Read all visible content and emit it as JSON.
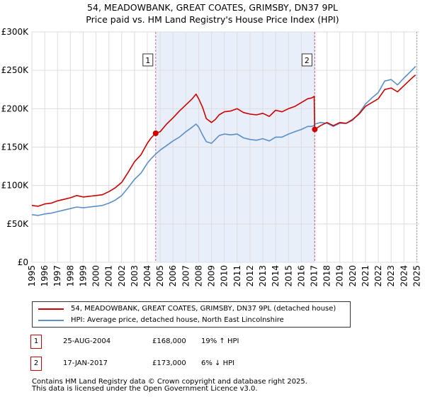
{
  "chart_data": {
    "type": "line",
    "title": "54, MEADOWBANK, GREAT COATES, GRIMSBY, DN37 9PL",
    "subtitle": "Price paid vs. HM Land Registry's House Price Index (HPI)",
    "xlim": [
      1995,
      2025.2
    ],
    "ylim": [
      0,
      300000
    ],
    "x_ticks": [
      1995,
      1996,
      1997,
      1998,
      1999,
      2000,
      2001,
      2002,
      2003,
      2004,
      2005,
      2006,
      2007,
      2008,
      2009,
      2010,
      2011,
      2012,
      2013,
      2014,
      2015,
      2016,
      2017,
      2018,
      2019,
      2020,
      2021,
      2022,
      2023,
      2024,
      2025
    ],
    "x_tick_labels": [
      "1995",
      "1996",
      "1997",
      "1998",
      "1999",
      "2000",
      "2001",
      "2002",
      "2003",
      "2004",
      "2005",
      "2006",
      "2007",
      "2008",
      "2009",
      "2010",
      "2011",
      "2012",
      "2013",
      "2014",
      "2015",
      "2016",
      "2017",
      "2018",
      "2019",
      "2020",
      "2021",
      "2022",
      "2023",
      "2024",
      "2025"
    ],
    "y_ticks": [
      0,
      50000,
      100000,
      150000,
      200000,
      250000,
      300000
    ],
    "y_tick_labels": [
      "£0",
      "£50K",
      "£100K",
      "£150K",
      "£200K",
      "£250K",
      "£300K"
    ],
    "shaded_span": [
      2004.65,
      2017.05
    ],
    "series": [
      {
        "name": "54, MEADOWBANK, GREAT COATES, GRIMSBY, DN37 9PL (detached house)",
        "color": "#cc0000",
        "x": [
          1995,
          1995.5,
          1996,
          1996.5,
          1997,
          1997.5,
          1998,
          1998.5,
          1999,
          1999.5,
          2000,
          2000.5,
          2001,
          2001.5,
          2002,
          2002.5,
          2003,
          2003.5,
          2004,
          2004.3,
          2004.65,
          2005,
          2005.5,
          2006,
          2006.5,
          2007,
          2007.5,
          2007.8,
          2008,
          2008.3,
          2008.6,
          2009,
          2009.3,
          2009.6,
          2010,
          2010.5,
          2011,
          2011.5,
          2012,
          2012.5,
          2013,
          2013.5,
          2014,
          2014.5,
          2015,
          2015.5,
          2016,
          2016.5,
          2016.8,
          2017.0,
          2017.05,
          2017.5,
          2018,
          2018.5,
          2019,
          2019.5,
          2020,
          2020.5,
          2021,
          2021.5,
          2022,
          2022.5,
          2023,
          2023.5,
          2024,
          2024.5,
          2024.9
        ],
        "y": [
          74000,
          73000,
          76000,
          77000,
          80000,
          82000,
          84000,
          87000,
          85000,
          86000,
          87000,
          88000,
          92000,
          97000,
          104000,
          117000,
          131000,
          140000,
          155000,
          162000,
          168000,
          170000,
          180000,
          188000,
          197000,
          205000,
          213000,
          219000,
          213000,
          202000,
          187000,
          182000,
          186000,
          192000,
          196000,
          197000,
          200000,
          195000,
          193000,
          192000,
          194000,
          190000,
          198000,
          196000,
          200000,
          203000,
          208000,
          213000,
          214000,
          216000,
          173000,
          178000,
          182000,
          178000,
          182000,
          181000,
          186000,
          193000,
          203000,
          208000,
          213000,
          225000,
          227000,
          222000,
          230000,
          238000,
          244000
        ]
      },
      {
        "name": "HPI: Average price, detached house, North East Lincolnshire",
        "color": "#5b8fc9",
        "x": [
          1995,
          1995.5,
          1996,
          1996.5,
          1997,
          1997.5,
          1998,
          1998.5,
          1999,
          1999.5,
          2000,
          2000.5,
          2001,
          2001.5,
          2002,
          2002.5,
          2003,
          2003.5,
          2004,
          2004.3,
          2004.65,
          2005,
          2005.5,
          2006,
          2006.5,
          2007,
          2007.5,
          2007.8,
          2008,
          2008.3,
          2008.6,
          2009,
          2009.3,
          2009.6,
          2010,
          2010.5,
          2011,
          2011.5,
          2012,
          2012.5,
          2013,
          2013.5,
          2014,
          2014.5,
          2015,
          2015.5,
          2016,
          2016.5,
          2016.8,
          2017.0,
          2017.05,
          2017.5,
          2018,
          2018.5,
          2019,
          2019.5,
          2020,
          2020.5,
          2021,
          2021.5,
          2022,
          2022.5,
          2023,
          2023.5,
          2024,
          2024.5,
          2024.9
        ],
        "y": [
          62000,
          61000,
          63000,
          64000,
          66000,
          68000,
          70000,
          72000,
          71000,
          72000,
          73000,
          74000,
          77000,
          81000,
          87000,
          97000,
          108000,
          116000,
          129000,
          135000,
          141000,
          146000,
          152000,
          158000,
          163000,
          170000,
          176000,
          180000,
          176000,
          166000,
          157000,
          155000,
          160000,
          165000,
          167000,
          166000,
          167000,
          162000,
          160000,
          159000,
          161000,
          158000,
          163000,
          163000,
          167000,
          170000,
          173000,
          177000,
          177000,
          178000,
          180000,
          182000,
          181000,
          177000,
          181000,
          181000,
          185000,
          194000,
          206000,
          214000,
          221000,
          236000,
          238000,
          231000,
          240000,
          248000,
          255000
        ]
      }
    ],
    "sales": [
      {
        "id": "1",
        "x": 2004.65,
        "price": 168000
      },
      {
        "id": "2",
        "x": 2017.05,
        "price": 173000
      }
    ]
  },
  "legend": {
    "property_label": "54, MEADOWBANK, GREAT COATES, GRIMSBY, DN37 9PL (detached house)",
    "hpi_label": "HPI: Average price, detached house, North East Lincolnshire"
  },
  "transactions": [
    {
      "marker": "1",
      "date": "25-AUG-2004",
      "price": "£168,000",
      "hpi": "19% ↑ HPI"
    },
    {
      "marker": "2",
      "date": "17-JAN-2017",
      "price": "£173,000",
      "hpi": "6% ↓ HPI"
    }
  ],
  "footer": {
    "line1": "Contains HM Land Registry data © Crown copyright and database right 2025.",
    "line2": "This data is licensed under the Open Government Licence v3.0."
  },
  "colors": {
    "property": "#cc0000",
    "hpi": "#5b8fc9",
    "shade": "#e8eefa",
    "grid": "#dddddd",
    "vline": "#dd6688"
  }
}
